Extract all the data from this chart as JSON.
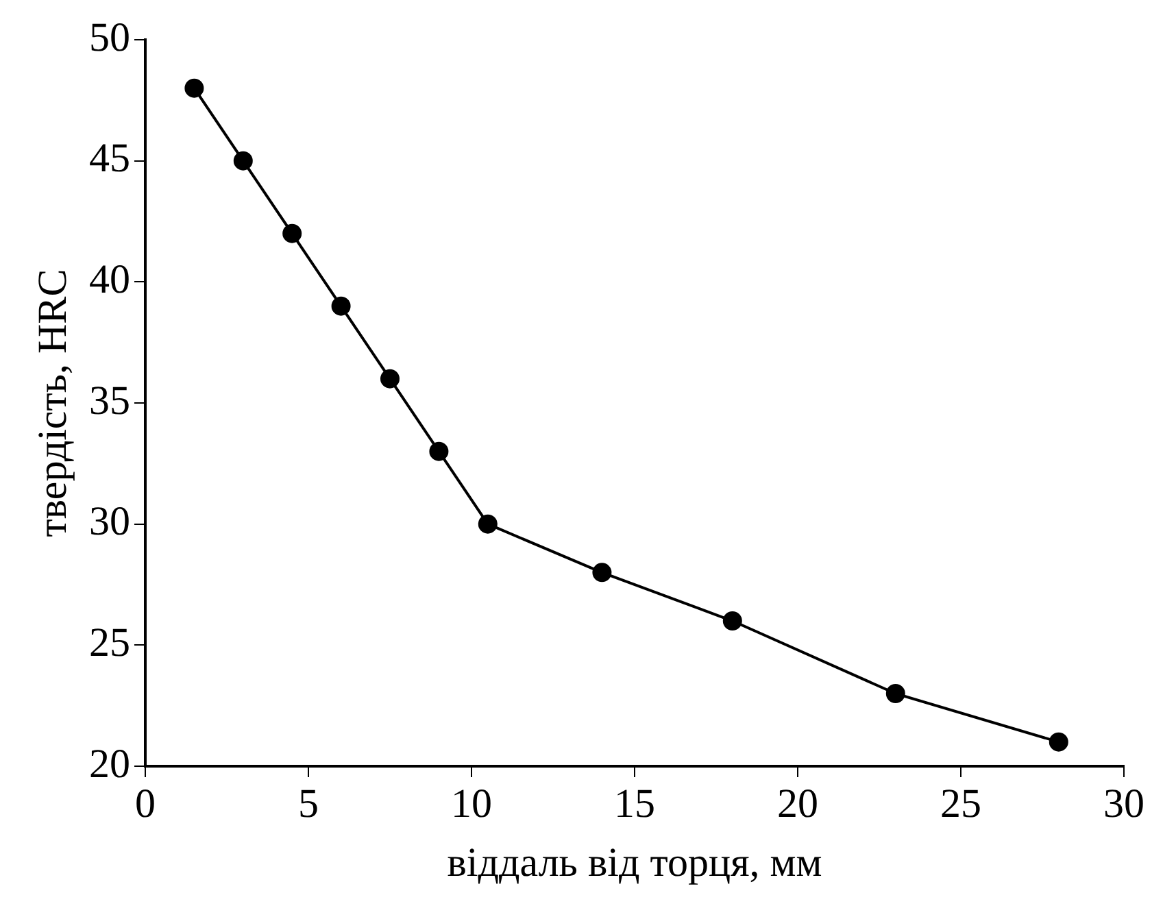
{
  "chart_data": {
    "type": "line",
    "xlabel": "віддаль від торця, мм",
    "ylabel": "твердість, HRC",
    "x": [
      1.5,
      3,
      4.5,
      6,
      7.5,
      9,
      10.5,
      14,
      18,
      23,
      28
    ],
    "series": [
      {
        "color": "#000000",
        "values": [
          48,
          45,
          42,
          39,
          36,
          33,
          30,
          28,
          26,
          23,
          21
        ]
      }
    ],
    "xlim": [
      0,
      30
    ],
    "xticks": [
      0,
      5,
      10,
      15,
      20,
      25,
      30
    ],
    "ylim": [
      20,
      50
    ],
    "yticks": [
      20,
      25,
      30,
      35,
      40,
      45,
      50
    ],
    "grid": false,
    "legend": false,
    "marker": "circle",
    "line_style": "solid"
  }
}
